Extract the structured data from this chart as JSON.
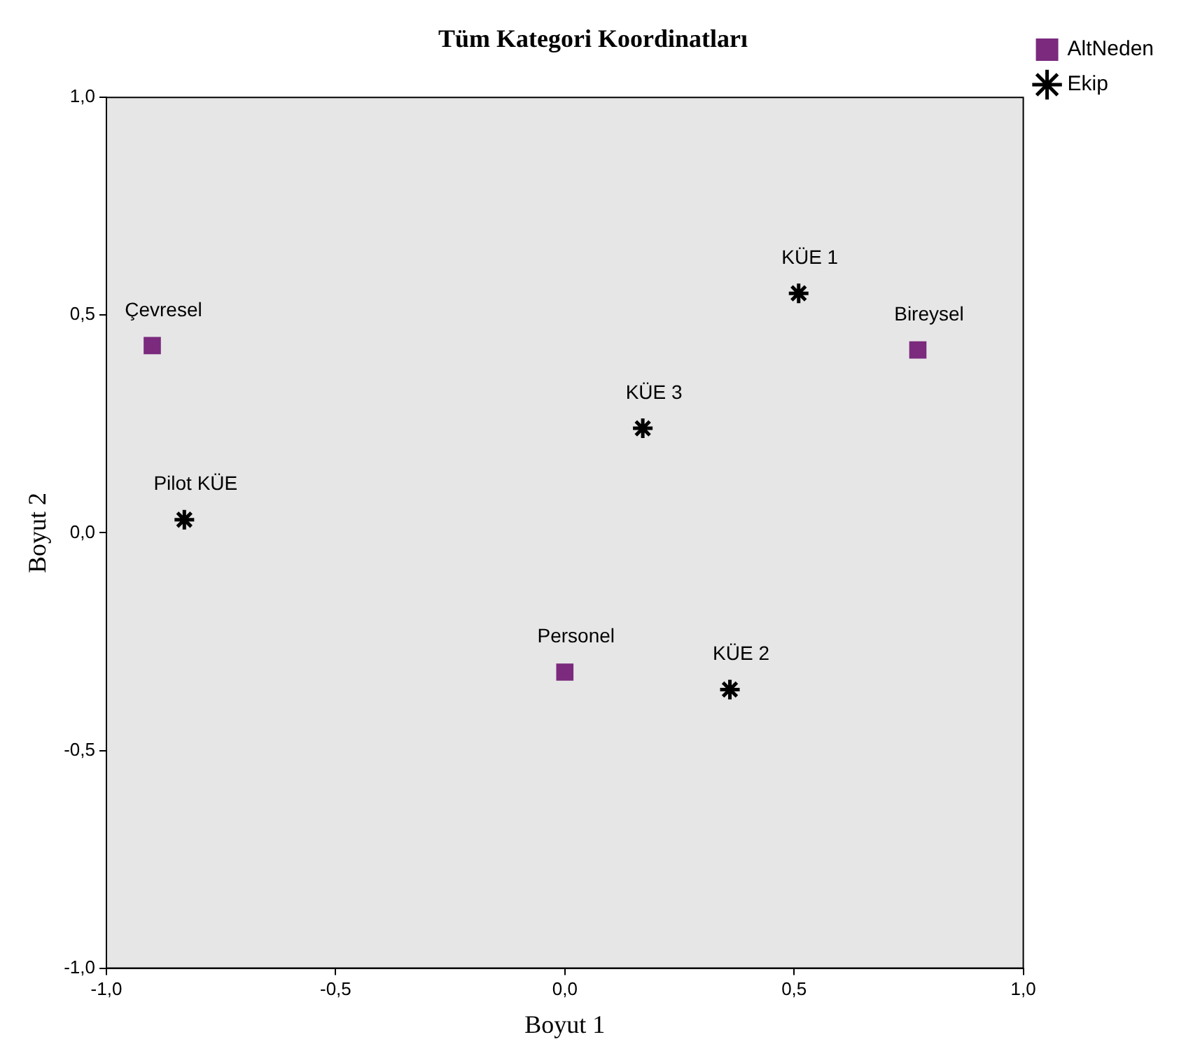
{
  "chart_data": {
    "type": "scatter",
    "title": "Tüm Kategori Koordinatları",
    "xlabel": "Boyut 1",
    "ylabel": "Boyut 2",
    "series": [
      {
        "name": "AltNeden",
        "color": "#7b2a7e",
        "marker": "square",
        "x": [
          -0.9,
          0.77,
          0.0
        ],
        "values": [
          0.43,
          0.42,
          -0.32
        ]
      },
      {
        "name": "Ekip",
        "color": "#000000",
        "marker": "cross",
        "x": [
          0.51,
          0.17,
          -0.83,
          0.36
        ],
        "values": [
          0.55,
          0.24,
          0.03,
          -0.36
        ]
      }
    ],
    "annotations": [
      {
        "text": "Çevresel",
        "x": -0.9,
        "y": 0.43
      },
      {
        "text": "Bireysel",
        "x": 0.77,
        "y": 0.42
      },
      {
        "text": "Personel",
        "x": 0.0,
        "y": -0.32
      },
      {
        "text": "KÜE 1",
        "x": 0.51,
        "y": 0.55
      },
      {
        "text": "KÜE 3",
        "x": 0.17,
        "y": 0.24
      },
      {
        "text": "Pilot KÜE",
        "x": -0.83,
        "y": 0.03
      },
      {
        "text": "KÜE 2",
        "x": 0.36,
        "y": -0.36
      }
    ],
    "xlim": [
      -1,
      1
    ],
    "ylim": [
      -1,
      1
    ],
    "xticks": [
      {
        "value": -1,
        "label": "-1,0"
      },
      {
        "value": -0.5,
        "label": "-0,5"
      },
      {
        "value": 0,
        "label": "0,0"
      },
      {
        "value": 0.5,
        "label": "0,5"
      },
      {
        "value": 1,
        "label": "1,0"
      }
    ],
    "yticks": [
      {
        "value": -1,
        "label": "-1,0"
      },
      {
        "value": -0.5,
        "label": "-0,5"
      },
      {
        "value": 0,
        "label": "0,0"
      },
      {
        "value": 0.5,
        "label": "0,5"
      },
      {
        "value": 1,
        "label": "1,0"
      }
    ],
    "grid": false,
    "legend": "top right"
  }
}
